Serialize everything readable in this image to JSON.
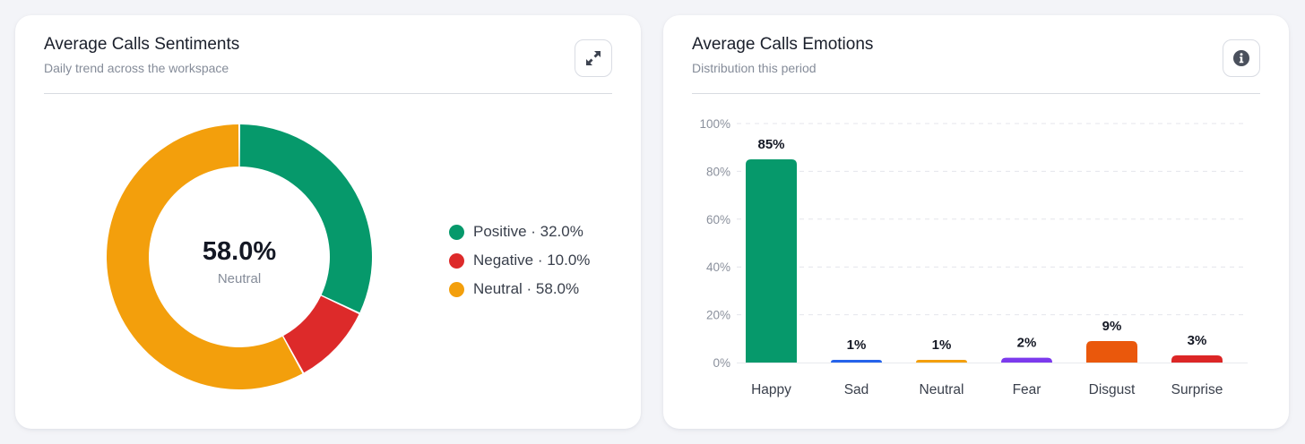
{
  "sentiment_card": {
    "title": "Average Calls Sentiments",
    "subtitle": "Daily trend across the workspace",
    "action_icon": "expand-icon",
    "center_value": "58.0%",
    "center_label": "Neutral",
    "legend": [
      {
        "label": "Positive · 32.0%",
        "color": "#06996b"
      },
      {
        "label": "Negative · 10.0%",
        "color": "#dd2a2a"
      },
      {
        "label": "Neutral · 58.0%",
        "color": "#f39f0c"
      }
    ]
  },
  "emotions_card": {
    "title": "Average Calls Emotions",
    "subtitle": "Distribution this period",
    "action_icon": "info-icon"
  },
  "chart_data": [
    {
      "type": "pie",
      "variant": "donut",
      "categories": [
        "Positive",
        "Negative",
        "Neutral"
      ],
      "values": [
        32.0,
        10.0,
        58.0
      ],
      "colors": [
        "#06996b",
        "#dd2a2a",
        "#f39f0c"
      ],
      "title": "Average Calls Sentiments",
      "legend": "right"
    },
    {
      "type": "bar",
      "categories": [
        "Happy",
        "Sad",
        "Neutral",
        "Fear",
        "Disgust",
        "Surprise"
      ],
      "values": [
        85,
        1,
        1,
        2,
        9,
        3
      ],
      "data_labels": [
        "85%",
        "1%",
        "1%",
        "2%",
        "9%",
        "3%"
      ],
      "colors": [
        "#06996b",
        "#2563eb",
        "#f39f0c",
        "#7c3aed",
        "#ea580c",
        "#dc2626"
      ],
      "title": "Average Calls Emotions",
      "ylim": [
        0,
        100
      ],
      "yticks": [
        "0%",
        "20%",
        "40%",
        "60%",
        "80%",
        "100%"
      ],
      "grid": true,
      "legend": "none"
    }
  ]
}
